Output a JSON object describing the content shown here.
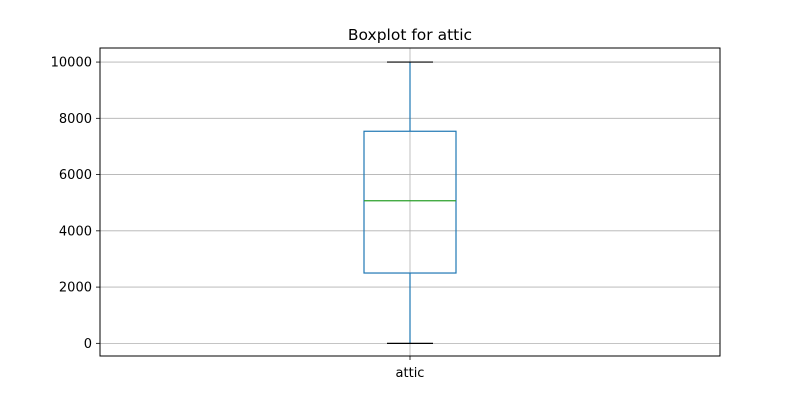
{
  "chart_data": {
    "type": "boxplot",
    "title": "Boxplot for attic",
    "categories": [
      "attic"
    ],
    "boxes": [
      {
        "whisker_low": 0,
        "q1": 2500,
        "median": 5070,
        "q3": 7540,
        "whisker_high": 10000
      }
    ],
    "ylim": [
      -450,
      10500
    ],
    "yticks": [
      0,
      2000,
      4000,
      6000,
      8000,
      10000
    ],
    "grid": true
  },
  "colors": {
    "box": "#1f77b4",
    "median": "#2ca02c",
    "whisker": "#000000",
    "grid": "#b0b0b0",
    "frame": "#000000"
  }
}
